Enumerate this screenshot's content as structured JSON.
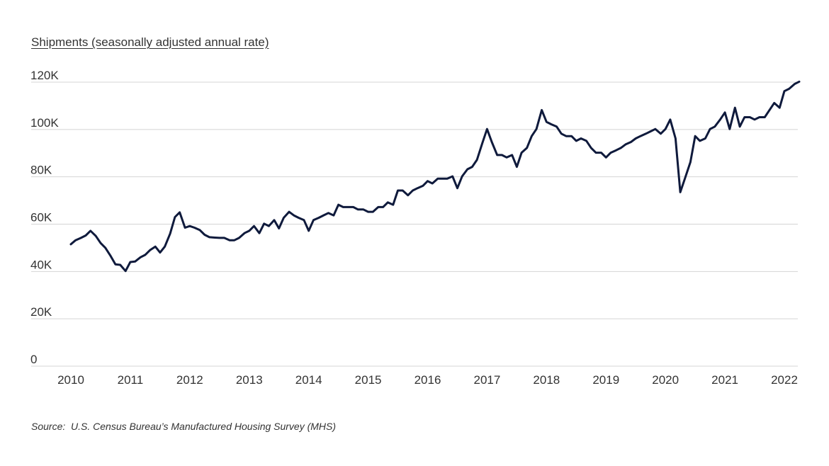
{
  "colors": {
    "line": "#0f1a3c",
    "grid": "#d4d4d4",
    "text": "#333333"
  },
  "chart_data": {
    "type": "line",
    "title": "Shipments (seasonally adjusted annual rate)",
    "xlabel": "",
    "ylabel": "",
    "ylim": [
      0,
      120000
    ],
    "xlim": [
      2010.0,
      2022.25
    ],
    "yticks": [
      {
        "value": 0,
        "label": "0"
      },
      {
        "value": 20000,
        "label": "20K"
      },
      {
        "value": 40000,
        "label": "40K"
      },
      {
        "value": 60000,
        "label": "60K"
      },
      {
        "value": 80000,
        "label": "80K"
      },
      {
        "value": 100000,
        "label": "100K"
      },
      {
        "value": 120000,
        "label": "120K"
      }
    ],
    "xticks": [
      {
        "value": 2010,
        "label": "2010"
      },
      {
        "value": 2011,
        "label": "2011"
      },
      {
        "value": 2012,
        "label": "2012"
      },
      {
        "value": 2013,
        "label": "2013"
      },
      {
        "value": 2014,
        "label": "2014"
      },
      {
        "value": 2015,
        "label": "2015"
      },
      {
        "value": 2016,
        "label": "2016"
      },
      {
        "value": 2017,
        "label": "2017"
      },
      {
        "value": 2018,
        "label": "2018"
      },
      {
        "value": 2019,
        "label": "2019"
      },
      {
        "value": 2020,
        "label": "2020"
      },
      {
        "value": 2021,
        "label": "2021"
      },
      {
        "value": 2022,
        "label": "2022"
      }
    ],
    "series": [
      {
        "name": "Shipments",
        "x": [
          2010.0,
          2010.08,
          2010.17,
          2010.25,
          2010.33,
          2010.42,
          2010.5,
          2010.58,
          2010.67,
          2010.75,
          2010.83,
          2010.92,
          2011.0,
          2011.08,
          2011.17,
          2011.25,
          2011.33,
          2011.42,
          2011.5,
          2011.58,
          2011.67,
          2011.75,
          2011.83,
          2011.92,
          2012.0,
          2012.08,
          2012.17,
          2012.25,
          2012.33,
          2012.42,
          2012.5,
          2012.58,
          2012.67,
          2012.75,
          2012.83,
          2012.92,
          2013.0,
          2013.08,
          2013.17,
          2013.25,
          2013.33,
          2013.42,
          2013.5,
          2013.58,
          2013.67,
          2013.75,
          2013.83,
          2013.92,
          2014.0,
          2014.08,
          2014.17,
          2014.25,
          2014.33,
          2014.42,
          2014.5,
          2014.58,
          2014.67,
          2014.75,
          2014.83,
          2014.92,
          2015.0,
          2015.08,
          2015.17,
          2015.25,
          2015.33,
          2015.42,
          2015.5,
          2015.58,
          2015.67,
          2015.75,
          2015.83,
          2015.92,
          2016.0,
          2016.08,
          2016.17,
          2016.25,
          2016.33,
          2016.42,
          2016.5,
          2016.58,
          2016.67,
          2016.75,
          2016.83,
          2016.92,
          2017.0,
          2017.08,
          2017.17,
          2017.25,
          2017.33,
          2017.42,
          2017.5,
          2017.58,
          2017.67,
          2017.75,
          2017.83,
          2017.92,
          2018.0,
          2018.08,
          2018.17,
          2018.25,
          2018.33,
          2018.42,
          2018.5,
          2018.58,
          2018.67,
          2018.75,
          2018.83,
          2018.92,
          2019.0,
          2019.08,
          2019.17,
          2019.25,
          2019.33,
          2019.42,
          2019.5,
          2019.58,
          2019.67,
          2019.75,
          2019.83,
          2019.92,
          2020.0,
          2020.08,
          2020.17,
          2020.25,
          2020.33,
          2020.42,
          2020.5,
          2020.58,
          2020.67,
          2020.75,
          2020.83,
          2020.92,
          2021.0,
          2021.08,
          2021.17,
          2021.25,
          2021.33,
          2021.42,
          2021.5,
          2021.58,
          2021.67,
          2021.75,
          2021.83,
          2021.92,
          2022.0,
          2022.08,
          2022.17,
          2022.25
        ],
        "values": [
          51500,
          53200,
          54200,
          55200,
          57200,
          55000,
          52000,
          50000,
          46500,
          43000,
          42800,
          40200,
          44000,
          44200,
          46000,
          47000,
          49000,
          50500,
          48000,
          50500,
          56000,
          63000,
          65000,
          58500,
          59200,
          58500,
          57500,
          55500,
          54500,
          54300,
          54200,
          54200,
          53200,
          53200,
          54200,
          56200,
          57200,
          59200,
          56200,
          60200,
          59200,
          61700,
          58200,
          62700,
          65200,
          63700,
          62700,
          61700,
          57200,
          61700,
          62700,
          63700,
          64700,
          63700,
          68200,
          67200,
          67200,
          67200,
          66200,
          66200,
          65200,
          65200,
          67200,
          67200,
          69200,
          68200,
          74200,
          74200,
          72200,
          74200,
          75200,
          76200,
          78200,
          77200,
          79200,
          79200,
          79200,
          80200,
          75200,
          80200,
          83200,
          84200,
          87200,
          94200,
          100200,
          94700,
          89200,
          89200,
          88200,
          89200,
          84200,
          90200,
          92200,
          97200,
          100200,
          108200,
          103200,
          102200,
          101200,
          98200,
          97200,
          97200,
          95200,
          96200,
          95200,
          92200,
          90200,
          90200,
          88200,
          90200,
          91200,
          92200,
          93700,
          94700,
          96200,
          97200,
          98200,
          99200,
          100200,
          98200,
          100200,
          104200,
          96200,
          73500,
          79500,
          86200,
          97200,
          95200,
          96200,
          100200,
          101200,
          104200,
          107200,
          100200,
          109200,
          101200,
          105200,
          105200,
          104200,
          105200,
          105200,
          108200,
          111200,
          109200,
          116200,
          117200,
          119200,
          120200
        ]
      }
    ]
  },
  "source": {
    "prefix": "Source:",
    "text": "U.S. Census Bureau’s Manufactured Housing Survey (MHS)"
  }
}
